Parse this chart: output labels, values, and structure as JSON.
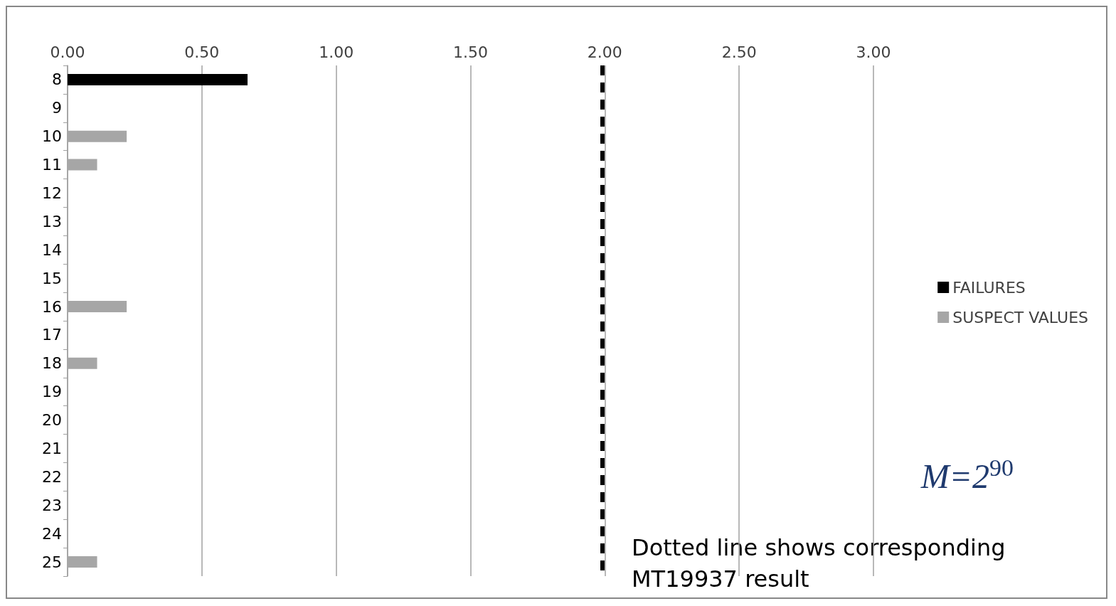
{
  "chart_data": {
    "type": "bar",
    "orientation": "horizontal",
    "categories": [
      "8",
      "9",
      "10",
      "11",
      "12",
      "13",
      "14",
      "15",
      "16",
      "17",
      "18",
      "19",
      "20",
      "21",
      "22",
      "23",
      "24",
      "25"
    ],
    "series": [
      {
        "name": "FAILURES",
        "color": "#000000",
        "values": [
          0.67,
          null,
          null,
          null,
          null,
          null,
          null,
          null,
          null,
          null,
          null,
          null,
          null,
          null,
          null,
          null,
          null,
          null
        ]
      },
      {
        "name": "SUSPECT VALUES",
        "color": "#a6a6a6",
        "values": [
          null,
          null,
          0.22,
          0.11,
          null,
          null,
          null,
          null,
          0.22,
          null,
          0.11,
          null,
          null,
          null,
          null,
          null,
          null,
          0.11
        ]
      }
    ],
    "xlim": [
      0,
      3
    ],
    "xticks": [
      {
        "value": 0,
        "label": "0.00"
      },
      {
        "value": 0.5,
        "label": "0.50"
      },
      {
        "value": 1,
        "label": "1.00"
      },
      {
        "value": 1.5,
        "label": "1.50"
      },
      {
        "value": 2,
        "label": "2.00"
      },
      {
        "value": 2.5,
        "label": "2.50"
      },
      {
        "value": 3,
        "label": "3.00"
      }
    ],
    "ref_lines": [
      {
        "axis": "x",
        "value": 1.99,
        "color": "#000000",
        "line_style": "dashed"
      }
    ],
    "annotations": [
      "M=2$^{90}$",
      "Dotted line shows corresponding MT19937 result"
    ],
    "grid": "x",
    "legend": "right"
  }
}
